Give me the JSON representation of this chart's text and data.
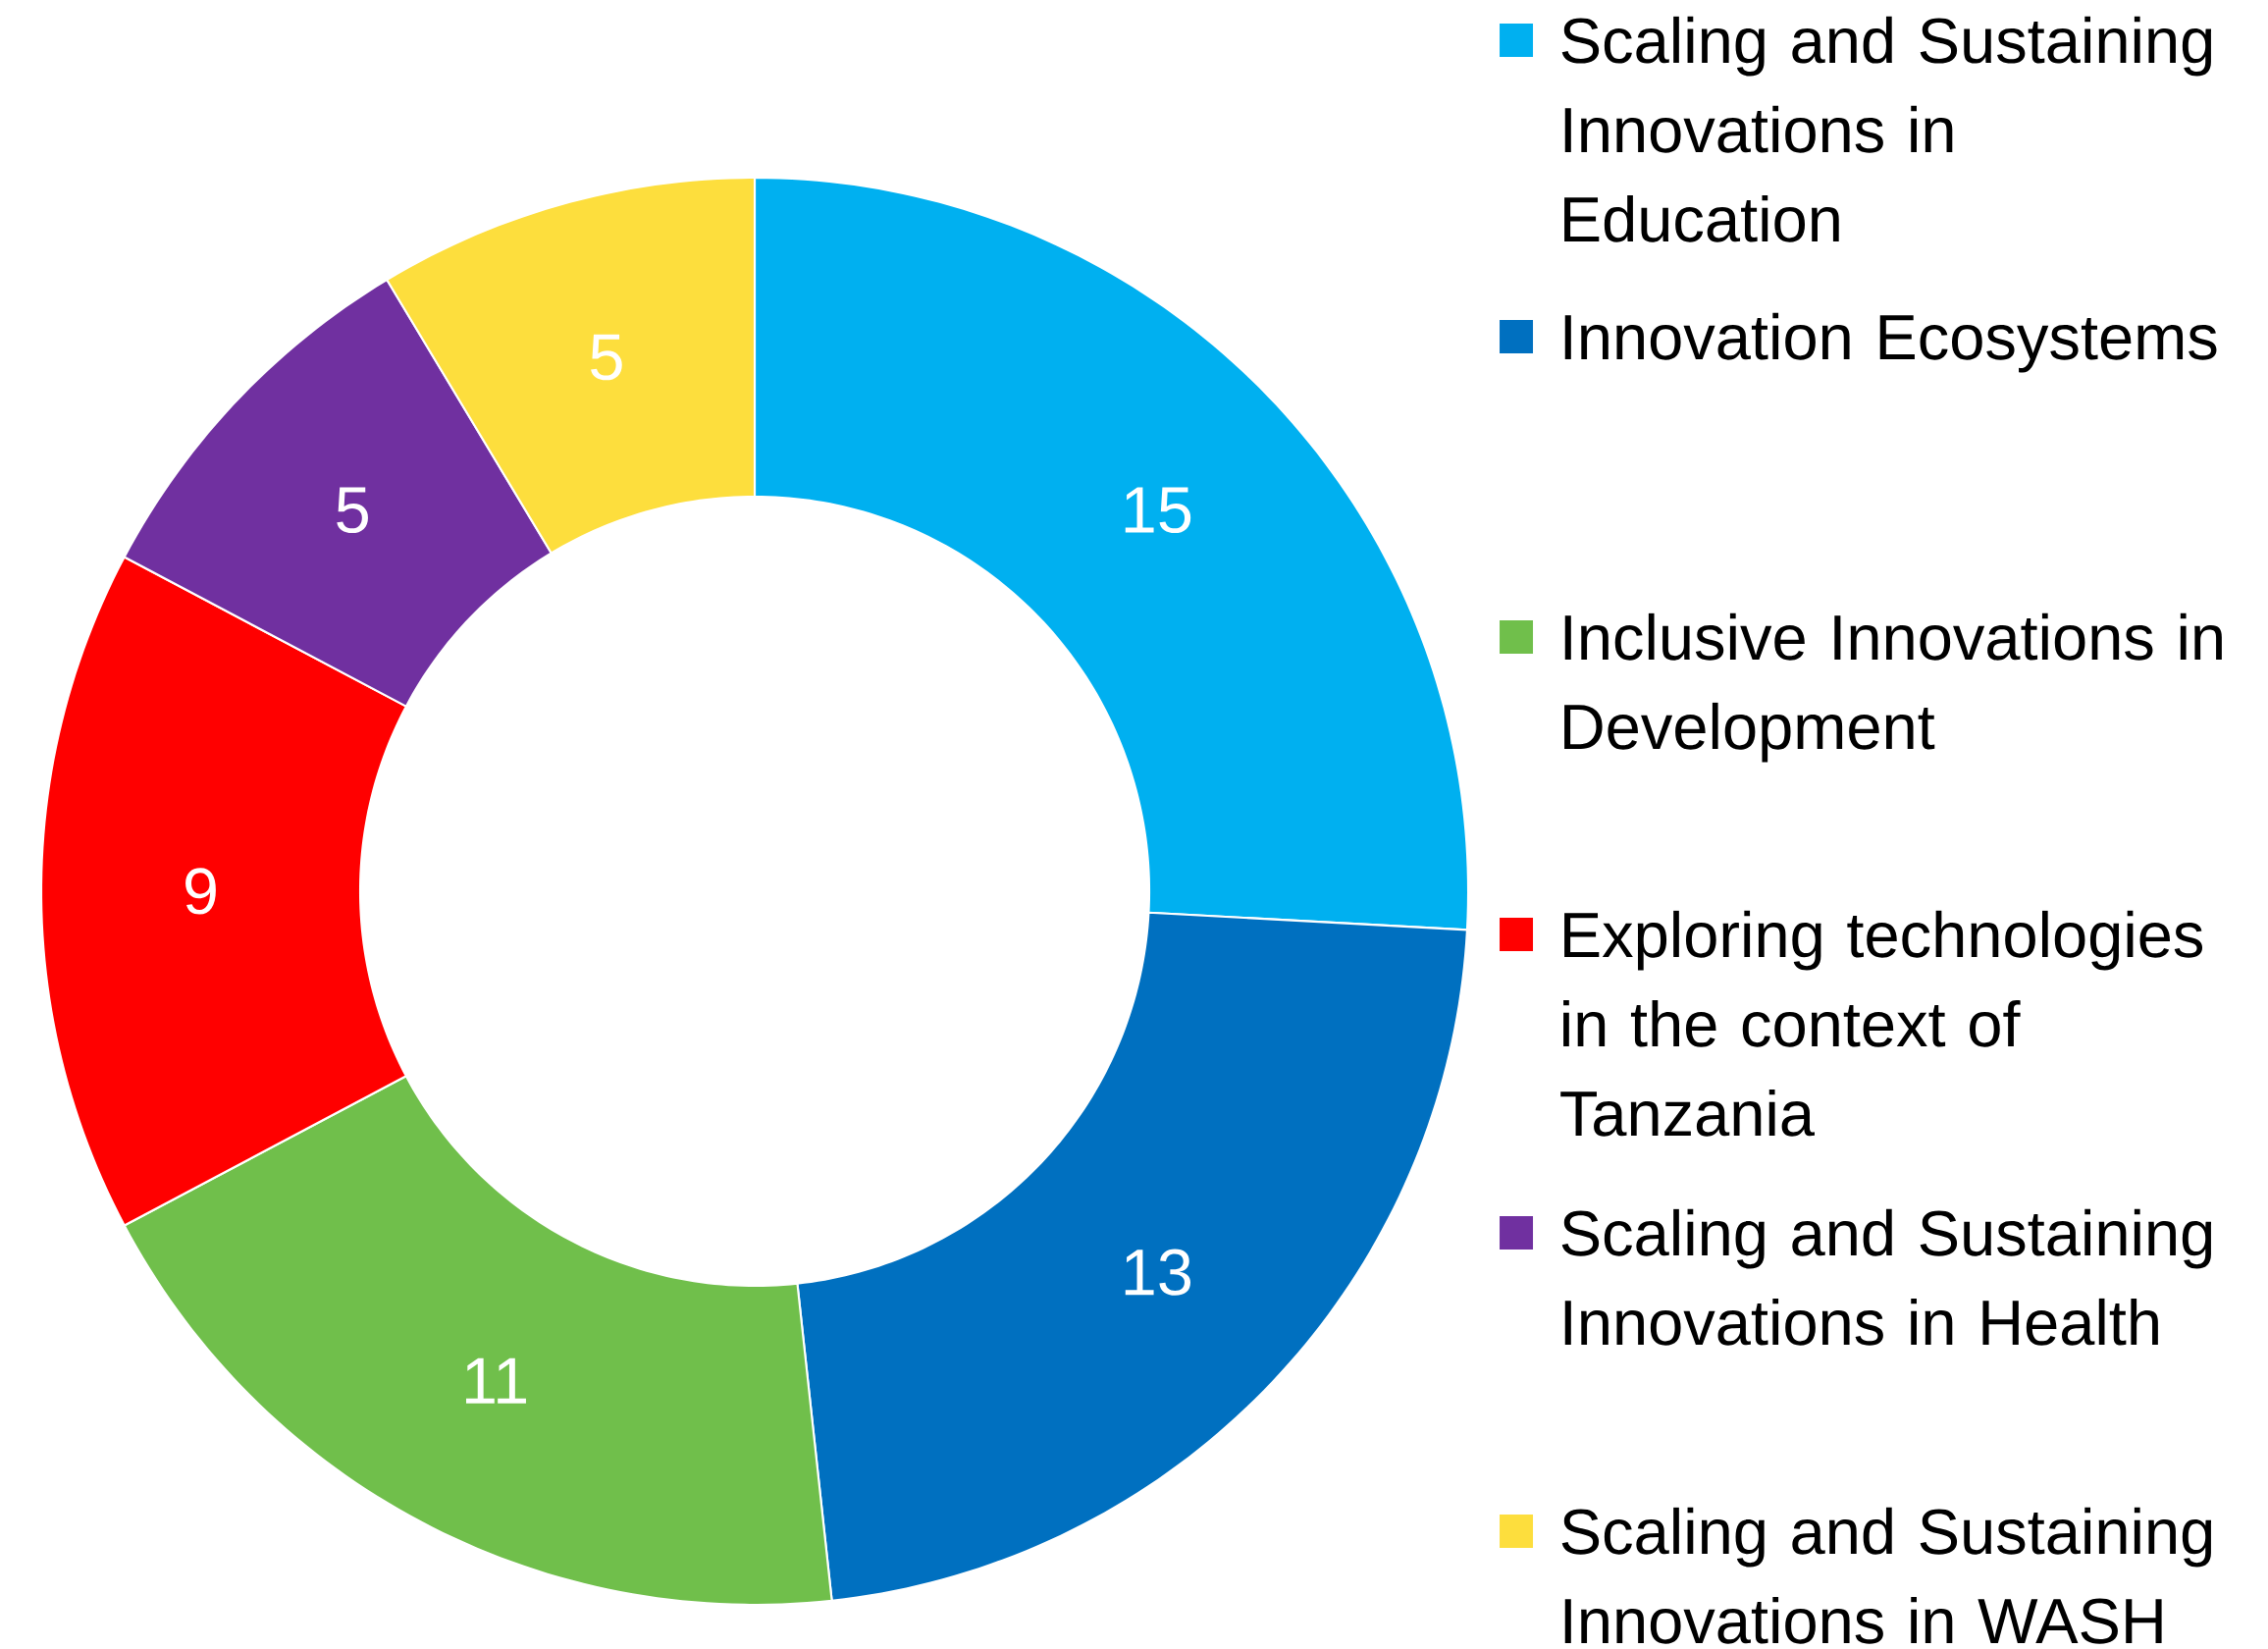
{
  "chart_data": {
    "type": "donut",
    "categories": [
      "Scaling and Sustaining Innovations in Education",
      "Innovation Ecosystems",
      "Inclusive Innovations in Development",
      "Exploring technologies in the context of Tanzania",
      "Scaling and Sustaining Innovations in Health",
      "Scaling and Sustaining Innovations in WASH"
    ],
    "values": [
      15,
      13,
      11,
      9,
      5,
      5
    ],
    "colors": [
      "#00b0f0",
      "#0070c0",
      "#70bf4b",
      "#ff0000",
      "#7030a0",
      "#fdde3d"
    ],
    "data_labels": true,
    "legend": "right"
  }
}
